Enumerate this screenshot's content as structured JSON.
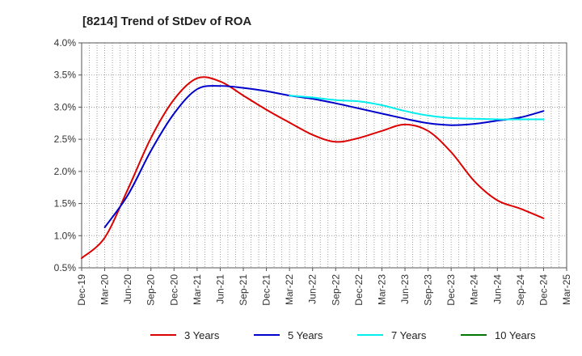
{
  "chart_data": {
    "type": "line",
    "title": "[8214]  Trend of StDev of ROA",
    "xlabel": "",
    "ylabel": "",
    "x_ticks": [
      "Dec-19",
      "Mar-20",
      "Jun-20",
      "Sep-20",
      "Dec-20",
      "Mar-21",
      "Jun-21",
      "Sep-21",
      "Dec-21",
      "Mar-22",
      "Jun-22",
      "Sep-22",
      "Dec-22",
      "Mar-23",
      "Jun-23",
      "Sep-23",
      "Dec-23",
      "Mar-24",
      "Jun-24",
      "Sep-24",
      "Dec-24",
      "Mar-25"
    ],
    "y_ticks": [
      "0.5%",
      "1.0%",
      "1.5%",
      "2.0%",
      "2.5%",
      "3.0%",
      "3.5%",
      "4.0%"
    ],
    "ylim": [
      0.5,
      4.0
    ],
    "y_unit": "%",
    "grid": true,
    "legend_position": "bottom",
    "series": [
      {
        "name": "3 Years",
        "color": "#dd0000",
        "points": [
          [
            0,
            0.65
          ],
          [
            1,
            0.97
          ],
          [
            2,
            1.72
          ],
          [
            3,
            2.52
          ],
          [
            4,
            3.12
          ],
          [
            5,
            3.45
          ],
          [
            6,
            3.4
          ],
          [
            7,
            3.18
          ],
          [
            8,
            2.96
          ],
          [
            9,
            2.76
          ],
          [
            10,
            2.57
          ],
          [
            11,
            2.46
          ],
          [
            12,
            2.52
          ],
          [
            13,
            2.63
          ],
          [
            14,
            2.73
          ],
          [
            15,
            2.63
          ],
          [
            16,
            2.3
          ],
          [
            17,
            1.85
          ],
          [
            18,
            1.55
          ],
          [
            19,
            1.42
          ],
          [
            20,
            1.27
          ]
        ]
      },
      {
        "name": "5 Years",
        "color": "#0000cc",
        "points": [
          [
            1,
            1.13
          ],
          [
            2,
            1.63
          ],
          [
            3,
            2.32
          ],
          [
            4,
            2.9
          ],
          [
            5,
            3.28
          ],
          [
            6,
            3.33
          ],
          [
            7,
            3.3
          ],
          [
            8,
            3.25
          ],
          [
            9,
            3.18
          ],
          [
            10,
            3.13
          ],
          [
            11,
            3.06
          ],
          [
            12,
            2.98
          ],
          [
            13,
            2.9
          ],
          [
            14,
            2.82
          ],
          [
            15,
            2.75
          ],
          [
            16,
            2.72
          ],
          [
            17,
            2.74
          ],
          [
            18,
            2.79
          ],
          [
            19,
            2.84
          ],
          [
            20,
            2.94
          ]
        ]
      },
      {
        "name": "7 Years",
        "color": "#00eeee",
        "points": [
          [
            9,
            3.18
          ],
          [
            10,
            3.15
          ],
          [
            11,
            3.11
          ],
          [
            12,
            3.09
          ],
          [
            13,
            3.03
          ],
          [
            14,
            2.94
          ],
          [
            15,
            2.87
          ],
          [
            16,
            2.83
          ],
          [
            17,
            2.82
          ],
          [
            18,
            2.81
          ],
          [
            19,
            2.81
          ],
          [
            20,
            2.81
          ]
        ]
      },
      {
        "name": "10 Years",
        "color": "#007700",
        "points": []
      }
    ]
  }
}
